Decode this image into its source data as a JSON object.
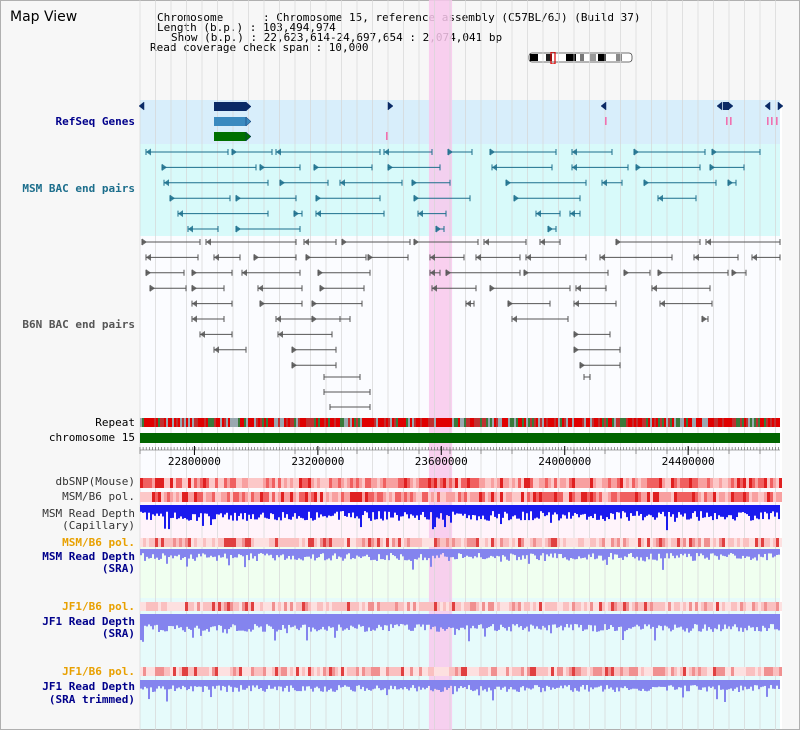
{
  "title": "Map View",
  "info": {
    "line1": "Chromosome      : Chromosome 15, reference assembly (C57BL/6J) (Build 37)",
    "line2": "Length (b.p.) : 103,494,974",
    "line3": "Show (b.p.) : 22,623,614-24,697,654 : 2,074,041 bp",
    "line4": "Read coverage check span : 10,000"
  },
  "labels": {
    "refseq": "RefSeq Genes",
    "msm_bac": "MSM BAC end pairs",
    "b6n_bac": "B6N BAC end pairs",
    "repeat": "Repeat",
    "chromosome": "chromosome 15",
    "dbsnp": "dbSNP(Mouse)",
    "msm_b6_pol": "MSM/B6 pol.",
    "msm_depth_cap_1": "MSM Read Depth",
    "msm_depth_cap_2": "(Capillary)",
    "msm_b6_pol2": "MSM/B6 pol.",
    "msm_depth_sra_1": "MSM Read Depth",
    "msm_depth_sra_2": "(SRA)",
    "jf1_pol": "JF1/B6 pol.",
    "jf1_depth_sra_1": "JF1 Read Depth",
    "jf1_depth_sra_2": "(SRA)",
    "jf1_pol2": "JF1/B6 pol.",
    "jf1_depth_trim_1": "JF1 Read Depth",
    "jf1_depth_trim_2": "(SRA trimmed)"
  },
  "axis": {
    "start_bp": 22623614,
    "end_bp": 24697654,
    "ticks": [
      "22800000",
      "23200000",
      "23600000",
      "24000000",
      "24400000"
    ]
  },
  "highlight": {
    "start_bp": 23560000,
    "end_bp": 23635000
  },
  "colors": {
    "highlight": "#f8c8ec",
    "refseq_bg": "#d8eefb",
    "msm_bg": "#d8fafa",
    "chromosome": "#006400",
    "depth_blue": "#1a1aee",
    "depth_lavender": "#8484ee",
    "refseq_gene": "#0a2a66",
    "refseq_tx": "#3a8abf",
    "refseq_cds": "#007000",
    "msm_pair": "#1c6e8c",
    "b6n_pair": "#555555"
  }
}
